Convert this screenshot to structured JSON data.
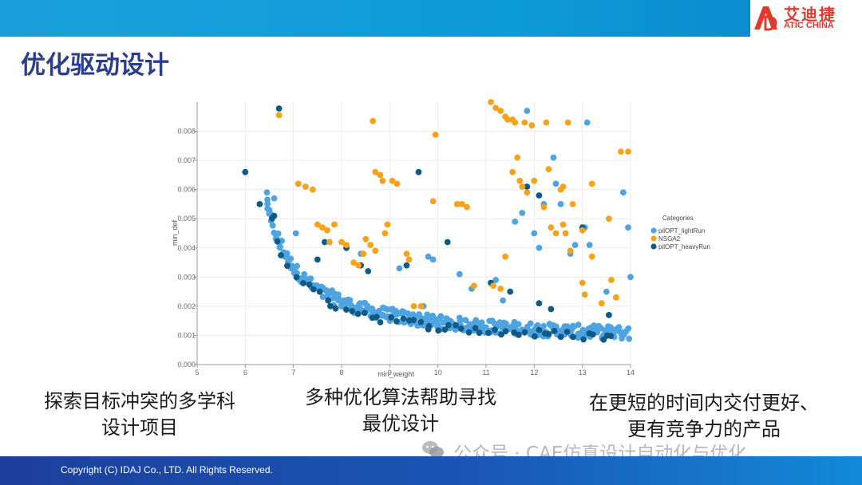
{
  "logo": {
    "cn": "艾迪捷",
    "en": "ATIC CHINA",
    "color": "#e03a2f"
  },
  "page": {
    "title": "优化驱动设计"
  },
  "captions": {
    "left": [
      "探索目标冲突的多学科",
      "设计项目"
    ],
    "middle": [
      "多种优化算法帮助寻找",
      "最优设计"
    ],
    "right": [
      "在更短的时间内交付更好、",
      "更有竞争力的产品"
    ]
  },
  "watermark": "公众号 · CAE仿真设计自动化与优化",
  "footer": {
    "copyright": "Copyright  (C)  IDAJ Co., LTD. All Rights Reserved."
  },
  "chart_data": {
    "type": "scatter",
    "xlabel": "min_weight",
    "ylabel": "min_def",
    "xlim": [
      5,
      14
    ],
    "ylim": [
      0,
      0.009
    ],
    "xticks": [
      "5",
      "6",
      "7",
      "8",
      "9",
      "10",
      "11",
      "12",
      "13",
      "14"
    ],
    "yticks": [
      "0.000",
      "0.001",
      "0.002",
      "0.003",
      "0.004",
      "0.005",
      "0.006",
      "0.007",
      "0.008"
    ],
    "grid": true,
    "legend": {
      "title": "Categories",
      "position": "right"
    },
    "series": [
      {
        "name": "pilOPT_lightRun",
        "color": "#4ea3e3",
        "front": {
          "x_start": 6.45,
          "x_end": 14.0,
          "step": 0.07,
          "k": 0.00333,
          "x0": 5.75,
          "offset": 0.0005
        },
        "points": [
          [
            6.45,
            0.0059
          ],
          [
            6.6,
            0.0057
          ],
          [
            6.5,
            0.0053
          ],
          [
            7.1,
            0.0062
          ],
          [
            7.05,
            0.0045
          ],
          [
            8.4,
            0.0038
          ],
          [
            9.2,
            0.0033
          ],
          [
            9.8,
            0.0037
          ],
          [
            9.9,
            0.0036
          ],
          [
            10.45,
            0.0031
          ],
          [
            11.2,
            0.0029
          ],
          [
            11.35,
            0.0022
          ],
          [
            11.6,
            0.0049
          ],
          [
            11.75,
            0.0052
          ],
          [
            11.85,
            0.0087
          ],
          [
            12.0,
            0.0045
          ],
          [
            12.1,
            0.004
          ],
          [
            12.2,
            0.0055
          ],
          [
            12.4,
            0.0071
          ],
          [
            12.45,
            0.0062
          ],
          [
            12.55,
            0.0055
          ],
          [
            12.75,
            0.0038
          ],
          [
            12.85,
            0.0041
          ],
          [
            13.1,
            0.0083
          ],
          [
            13.05,
            0.0047
          ],
          [
            13.15,
            0.0041
          ],
          [
            13.5,
            0.0025
          ],
          [
            13.85,
            0.0059
          ],
          [
            13.95,
            0.0047
          ],
          [
            14.0,
            0.003
          ],
          [
            10.7,
            0.0026
          ],
          [
            9.7,
            0.002
          ]
        ]
      },
      {
        "name": "NSGA2",
        "color": "#f6a21a",
        "points": [
          [
            6.7,
            0.00855
          ],
          [
            7.1,
            0.0062
          ],
          [
            7.25,
            0.0061
          ],
          [
            7.4,
            0.006
          ],
          [
            7.5,
            0.0048
          ],
          [
            7.6,
            0.0047
          ],
          [
            7.7,
            0.0046
          ],
          [
            7.75,
            0.0042
          ],
          [
            7.85,
            0.0048
          ],
          [
            8.0,
            0.0042
          ],
          [
            8.1,
            0.0041
          ],
          [
            8.25,
            0.0035
          ],
          [
            8.35,
            0.0034
          ],
          [
            8.45,
            0.0038
          ],
          [
            8.5,
            0.0043
          ],
          [
            8.6,
            0.0041
          ],
          [
            8.7,
            0.0039
          ],
          [
            8.9,
            0.0045
          ],
          [
            8.95,
            0.0048
          ],
          [
            8.65,
            0.00835
          ],
          [
            8.7,
            0.0066
          ],
          [
            8.8,
            0.0065
          ],
          [
            8.85,
            0.0063
          ],
          [
            9.05,
            0.0063
          ],
          [
            9.15,
            0.0062
          ],
          [
            9.35,
            0.0038
          ],
          [
            9.4,
            0.0036
          ],
          [
            9.5,
            0.002
          ],
          [
            9.65,
            0.002
          ],
          [
            9.9,
            0.0056
          ],
          [
            9.95,
            0.00788
          ],
          [
            10.4,
            0.0055
          ],
          [
            10.5,
            0.0055
          ],
          [
            10.6,
            0.0054
          ],
          [
            10.75,
            0.0027
          ],
          [
            11.1,
            0.009
          ],
          [
            11.2,
            0.0088
          ],
          [
            11.3,
            0.0087
          ],
          [
            11.4,
            0.0085
          ],
          [
            11.45,
            0.0084
          ],
          [
            11.55,
            0.0084
          ],
          [
            11.6,
            0.0083
          ],
          [
            11.8,
            0.0083
          ],
          [
            11.95,
            0.0082
          ],
          [
            12.25,
            0.0083
          ],
          [
            12.7,
            0.0083
          ],
          [
            11.65,
            0.0071
          ],
          [
            11.55,
            0.0066
          ],
          [
            11.7,
            0.0063
          ],
          [
            11.75,
            0.0061
          ],
          [
            11.85,
            0.0059
          ],
          [
            12.0,
            0.0063
          ],
          [
            12.3,
            0.0067
          ],
          [
            12.6,
            0.0061
          ],
          [
            12.55,
            0.006
          ],
          [
            12.2,
            0.0054
          ],
          [
            12.35,
            0.0047
          ],
          [
            12.45,
            0.0045
          ],
          [
            12.6,
            0.0048
          ],
          [
            12.8,
            0.0055
          ],
          [
            13.0,
            0.0046
          ],
          [
            11.4,
            0.0037
          ],
          [
            11.15,
            0.0027
          ],
          [
            11.3,
            0.0026
          ],
          [
            13.2,
            0.0062
          ],
          [
            13.55,
            0.005
          ],
          [
            13.8,
            0.0073
          ],
          [
            13.95,
            0.0073
          ],
          [
            13.0,
            0.0028
          ],
          [
            13.05,
            0.0024
          ],
          [
            13.2,
            0.0037
          ],
          [
            13.4,
            0.0021
          ],
          [
            13.6,
            0.0029
          ],
          [
            13.7,
            0.0023
          ],
          [
            12.65,
            0.0045
          ],
          [
            12.75,
            0.0039
          ]
        ]
      },
      {
        "name": "pilOPT_heavyRun",
        "color": "#0f5a86",
        "front": {
          "x_start": 6.5,
          "x_end": 13.75,
          "step": 0.13,
          "k": 0.0032,
          "x0": 5.77,
          "offset": 0.00045
        },
        "points": [
          [
            6.0,
            0.0066
          ],
          [
            6.3,
            0.0055
          ],
          [
            6.7,
            0.00878
          ],
          [
            6.6,
            0.0051
          ],
          [
            9.6,
            0.0066
          ],
          [
            10.2,
            0.0042
          ],
          [
            11.85,
            0.0061
          ],
          [
            12.1,
            0.0058
          ],
          [
            13.0,
            0.0047
          ],
          [
            7.65,
            0.0042
          ],
          [
            7.5,
            0.0036
          ],
          [
            8.4,
            0.0034
          ],
          [
            8.55,
            0.0032
          ],
          [
            9.35,
            0.0034
          ],
          [
            11.1,
            0.0028
          ],
          [
            11.5,
            0.0025
          ],
          [
            12.1,
            0.0021
          ],
          [
            12.35,
            0.0019
          ],
          [
            13.55,
            0.0017
          ],
          [
            8.1,
            0.004
          ]
        ]
      }
    ]
  }
}
